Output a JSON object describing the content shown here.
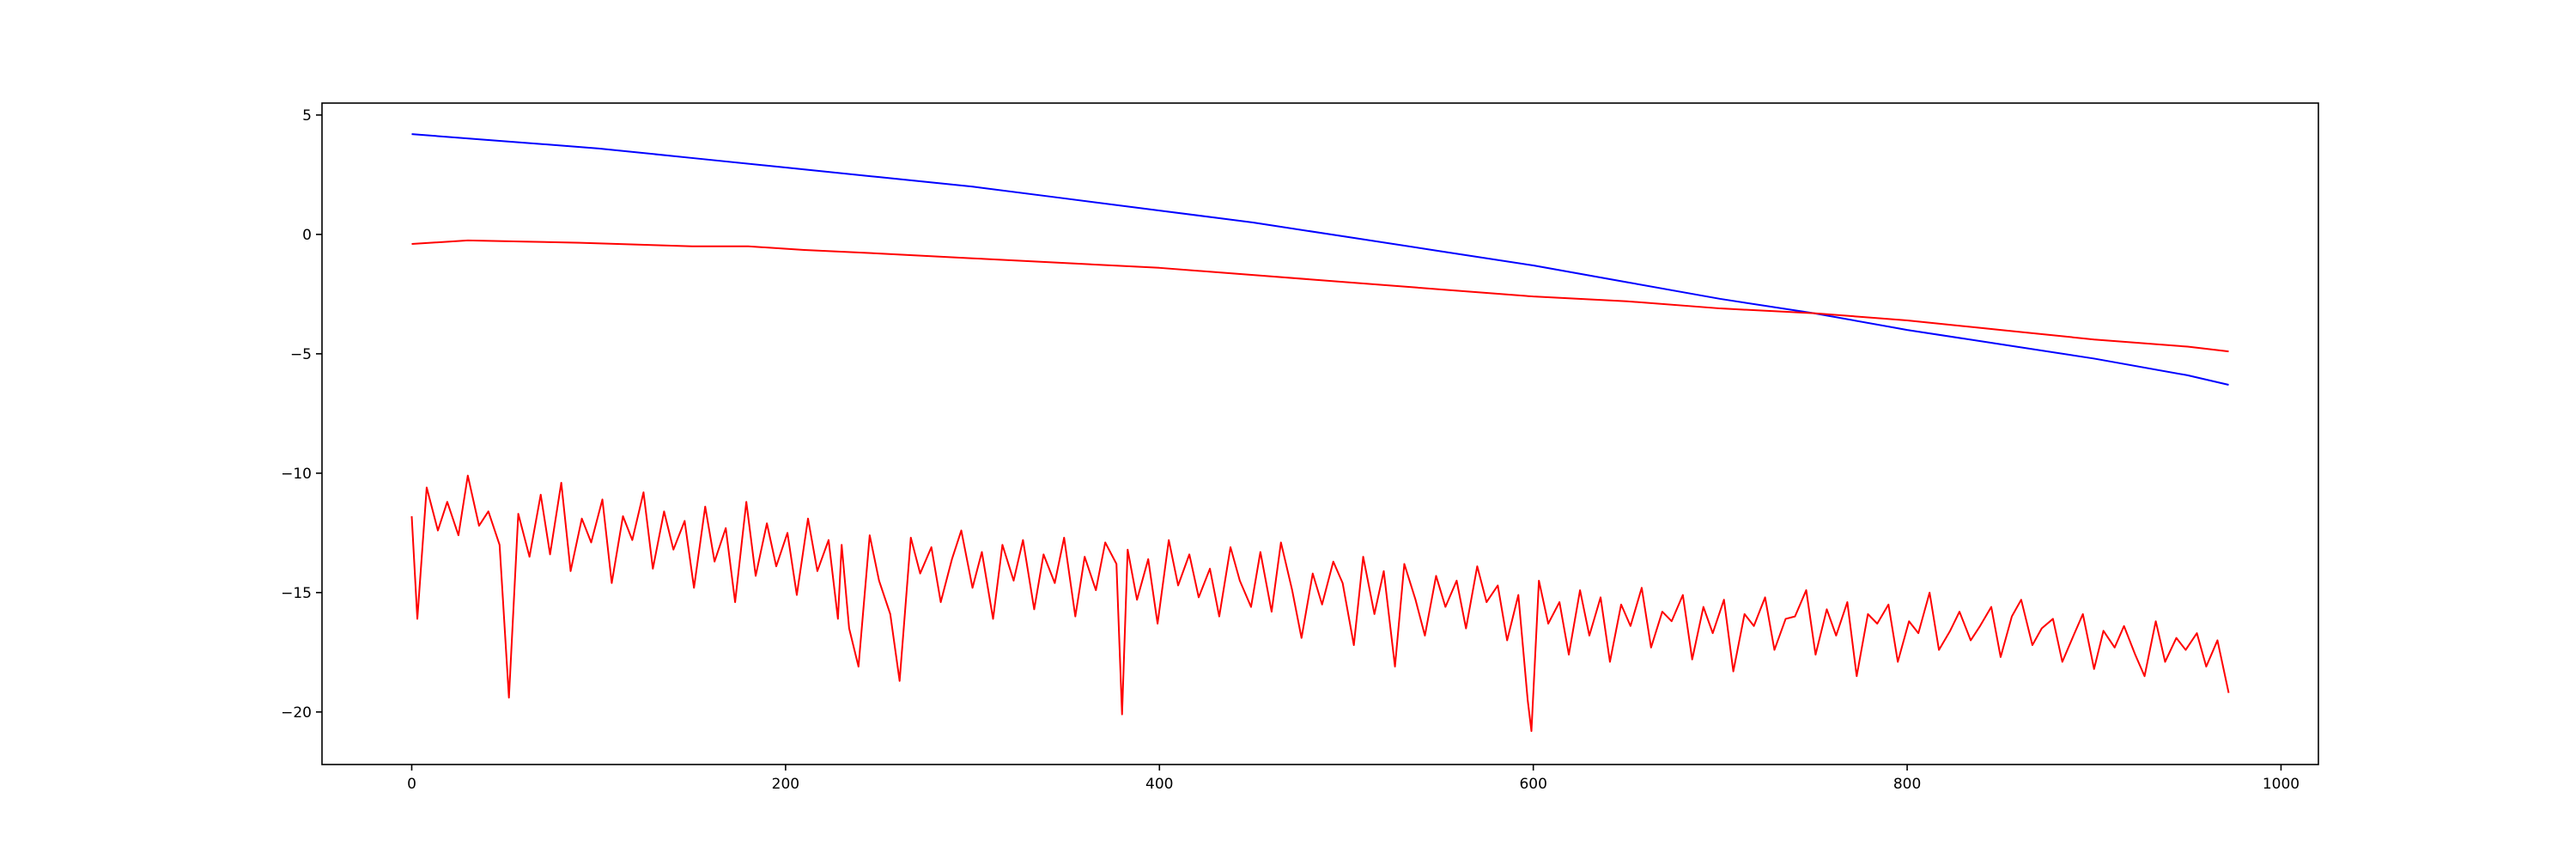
{
  "chart_data": {
    "type": "line",
    "title": "",
    "xlabel": "",
    "ylabel": "",
    "xlim": [
      -48,
      1020
    ],
    "ylim": [
      -22.2,
      5.5
    ],
    "x_ticks": [
      0,
      200,
      400,
      600,
      800,
      1000
    ],
    "y_ticks": [
      5,
      0,
      -5,
      -10,
      -15,
      -20
    ],
    "x_tick_labels": [
      "0",
      "200",
      "400",
      "600",
      "800",
      "1000"
    ],
    "y_tick_labels": [
      "5",
      "0",
      "−5",
      "−10",
      "−15",
      "−20"
    ],
    "grid": false,
    "legend": "none",
    "series": [
      {
        "color": "#0000ff",
        "x": [
          0,
          50,
          100,
          150,
          200,
          250,
          300,
          350,
          400,
          450,
          500,
          550,
          600,
          650,
          700,
          750,
          800,
          850,
          900,
          950,
          972
        ],
        "y": [
          4.2,
          3.9,
          3.6,
          3.2,
          2.8,
          2.4,
          2.0,
          1.5,
          1.0,
          0.5,
          -0.1,
          -0.7,
          -1.3,
          -2.0,
          -2.7,
          -3.3,
          -4.0,
          -4.6,
          -5.2,
          -5.9,
          -6.3
        ]
      },
      {
        "color": "#ff0000",
        "x": [
          0,
          30,
          60,
          90,
          130,
          150,
          180,
          210,
          250,
          300,
          350,
          400,
          450,
          500,
          550,
          600,
          650,
          700,
          750,
          800,
          850,
          900,
          950,
          972
        ],
        "y": [
          -0.4,
          -0.25,
          -0.3,
          -0.35,
          -0.45,
          -0.5,
          -0.5,
          -0.65,
          -0.8,
          -1.0,
          -1.2,
          -1.4,
          -1.7,
          -2.0,
          -2.3,
          -2.6,
          -2.8,
          -3.1,
          -3.3,
          -3.6,
          -4.0,
          -4.4,
          -4.7,
          -4.9
        ]
      },
      {
        "color": "#ff0000",
        "x": [
          0,
          3,
          8,
          14,
          19,
          25,
          30,
          36,
          41,
          47,
          52,
          57,
          63,
          69,
          74,
          80,
          85,
          91,
          96,
          102,
          107,
          113,
          118,
          124,
          129,
          135,
          140,
          146,
          151,
          157,
          162,
          168,
          173,
          179,
          184,
          190,
          195,
          201,
          206,
          212,
          217,
          223,
          228,
          230,
          234,
          239,
          245,
          250,
          256,
          261,
          267,
          272,
          278,
          283,
          289,
          294,
          300,
          305,
          311,
          316,
          322,
          327,
          333,
          338,
          344,
          349,
          355,
          360,
          366,
          371,
          377,
          380,
          383,
          388,
          394,
          399,
          405,
          410,
          416,
          421,
          427,
          432,
          438,
          443,
          449,
          454,
          460,
          465,
          471,
          476,
          482,
          487,
          493,
          498,
          504,
          509,
          515,
          520,
          526,
          531,
          537,
          542,
          548,
          553,
          559,
          564,
          570,
          575,
          581,
          586,
          592,
          597,
          599,
          603,
          608,
          614,
          619,
          625,
          630,
          636,
          641,
          647,
          652,
          658,
          663,
          669,
          674,
          680,
          685,
          691,
          696,
          702,
          707,
          713,
          718,
          724,
          729,
          735,
          740,
          746,
          751,
          757,
          762,
          768,
          773,
          779,
          784,
          790,
          795,
          801,
          806,
          812,
          817,
          823,
          828,
          834,
          839,
          845,
          850,
          856,
          861,
          867,
          872,
          878,
          883,
          889,
          894,
          900,
          905,
          911,
          916,
          922,
          927,
          933,
          938,
          944,
          949,
          955,
          960,
          966,
          972
        ],
        "y": [
          -11.8,
          -16.1,
          -10.6,
          -12.4,
          -11.2,
          -12.6,
          -10.1,
          -12.2,
          -11.6,
          -13.0,
          -19.4,
          -11.7,
          -13.5,
          -10.9,
          -13.4,
          -10.4,
          -14.1,
          -11.9,
          -12.9,
          -11.1,
          -14.6,
          -11.8,
          -12.8,
          -10.8,
          -14.0,
          -11.6,
          -13.2,
          -12.0,
          -14.8,
          -11.4,
          -13.7,
          -12.3,
          -15.4,
          -11.2,
          -14.3,
          -12.1,
          -13.9,
          -12.5,
          -15.1,
          -11.9,
          -14.1,
          -12.8,
          -16.1,
          -13.0,
          -16.5,
          -18.1,
          -12.6,
          -14.5,
          -15.9,
          -18.7,
          -12.7,
          -14.2,
          -13.1,
          -15.4,
          -13.6,
          -12.4,
          -14.8,
          -13.3,
          -16.1,
          -13.0,
          -14.5,
          -12.8,
          -15.7,
          -13.4,
          -14.6,
          -12.7,
          -16.0,
          -13.5,
          -14.9,
          -12.9,
          -13.8,
          -20.1,
          -13.2,
          -15.3,
          -13.6,
          -16.3,
          -12.8,
          -14.7,
          -13.4,
          -15.2,
          -14.0,
          -16.0,
          -13.1,
          -14.5,
          -15.6,
          -13.3,
          -15.8,
          -12.9,
          -14.9,
          -16.9,
          -14.2,
          -15.5,
          -13.7,
          -14.6,
          -17.2,
          -13.5,
          -15.9,
          -14.1,
          -18.1,
          -13.8,
          -15.3,
          -16.8,
          -14.3,
          -15.6,
          -14.5,
          -16.5,
          -13.9,
          -15.4,
          -14.7,
          -17.0,
          -15.1,
          -19.5,
          -20.8,
          -14.5,
          -16.3,
          -15.4,
          -17.6,
          -14.9,
          -16.8,
          -15.2,
          -17.9,
          -15.5,
          -16.4,
          -14.8,
          -17.3,
          -15.8,
          -16.2,
          -15.1,
          -17.8,
          -15.6,
          -16.7,
          -15.3,
          -18.3,
          -15.9,
          -16.4,
          -15.2,
          -17.4,
          -16.1,
          -16.0,
          -14.9,
          -17.6,
          -15.7,
          -16.8,
          -15.4,
          -18.5,
          -15.9,
          -16.3,
          -15.5,
          -17.9,
          -16.2,
          -16.7,
          -15.0,
          -17.4,
          -16.6,
          -15.8,
          -17.0,
          -16.4,
          -15.6,
          -17.7,
          -16.0,
          -15.3,
          -17.2,
          -16.5,
          -16.1,
          -17.9,
          -16.8,
          -15.9,
          -18.2,
          -16.6,
          -17.3,
          -16.4,
          -17.6,
          -18.5,
          -16.2,
          -17.9,
          -16.9,
          -17.4,
          -16.7,
          -18.1,
          -17.0,
          -19.2
        ]
      }
    ]
  }
}
